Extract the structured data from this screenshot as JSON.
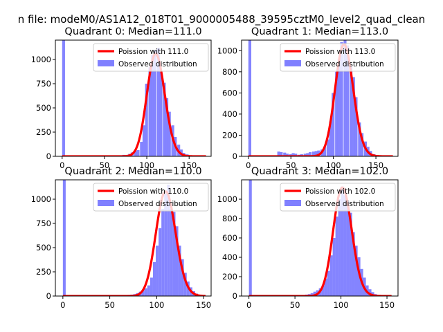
{
  "suptitle": "n file: modeM0/AS1A12_018T01_9000005488_39595cztM0_level2_quad_clean",
  "colors": {
    "poisson": "#ff0000",
    "observed": "#8080ff",
    "axes": "#000000"
  },
  "chart_data": [
    {
      "type": "bar",
      "title": "Quadrant 0: Median=111.0",
      "median": 111.0,
      "xlim": [
        -8,
        176
      ],
      "ylim": [
        0,
        1200
      ],
      "xticks": [
        0,
        50,
        100,
        150
      ],
      "yticks": [
        0,
        250,
        500,
        750,
        1000
      ],
      "legend": {
        "placement": "upper-right",
        "entries": [
          "Poission with 111.0",
          "Observed distribution"
        ]
      },
      "series": [
        {
          "name": "Poission with 111.0",
          "type": "line",
          "lambda": 111.0,
          "x_range": [
            0,
            170
          ],
          "peak": 1060
        },
        {
          "name": "Observed distribution",
          "type": "histogram",
          "bin_width": 3.4,
          "bins": [
            [
              0,
              1200
            ],
            [
              65,
              5
            ],
            [
              68,
              10
            ],
            [
              71,
              15
            ],
            [
              75,
              15
            ],
            [
              78,
              25
            ],
            [
              81,
              40
            ],
            [
              85,
              55
            ],
            [
              88,
              65
            ],
            [
              92,
              150
            ],
            [
              95,
              320
            ],
            [
              98,
              750
            ],
            [
              102,
              920
            ],
            [
              105,
              1050
            ],
            [
              108,
              1100
            ],
            [
              112,
              1120
            ],
            [
              115,
              870
            ],
            [
              119,
              760
            ],
            [
              122,
              600
            ],
            [
              125,
              460
            ],
            [
              129,
              320
            ],
            [
              132,
              200
            ],
            [
              136,
              120
            ],
            [
              139,
              70
            ],
            [
              142,
              35
            ],
            [
              146,
              20
            ],
            [
              149,
              10
            ],
            [
              153,
              5
            ]
          ]
        }
      ]
    },
    {
      "type": "bar",
      "title": "Quadrant 1: Median=113.0",
      "median": 113.0,
      "xlim": [
        -8,
        176
      ],
      "ylim": [
        0,
        1100
      ],
      "xticks": [
        0,
        50,
        100,
        150
      ],
      "yticks": [
        0,
        200,
        400,
        600,
        800,
        1000
      ],
      "legend": {
        "placement": "upper-right",
        "entries": [
          "Poission with 113.0",
          "Observed distribution"
        ]
      },
      "series": [
        {
          "name": "Poission with 113.0",
          "type": "line",
          "lambda": 113.0,
          "x_range": [
            0,
            170
          ],
          "peak": 1060
        },
        {
          "name": "Observed distribution",
          "type": "histogram",
          "bin_width": 3.4,
          "bins": [
            [
              0,
              1100
            ],
            [
              34,
              45
            ],
            [
              37,
              40
            ],
            [
              41,
              35
            ],
            [
              44,
              25
            ],
            [
              48,
              20
            ],
            [
              51,
              30
            ],
            [
              54,
              25
            ],
            [
              58,
              15
            ],
            [
              61,
              20
            ],
            [
              65,
              25
            ],
            [
              68,
              30
            ],
            [
              71,
              40
            ],
            [
              75,
              45
            ],
            [
              78,
              50
            ],
            [
              81,
              55
            ],
            [
              85,
              65
            ],
            [
              88,
              90
            ],
            [
              92,
              160
            ],
            [
              95,
              330
            ],
            [
              98,
              600
            ],
            [
              102,
              800
            ],
            [
              105,
              920
            ],
            [
              108,
              1080
            ],
            [
              112,
              1110
            ],
            [
              115,
              1050
            ],
            [
              119,
              850
            ],
            [
              122,
              750
            ],
            [
              125,
              560
            ],
            [
              129,
              320
            ],
            [
              132,
              220
            ],
            [
              136,
              140
            ],
            [
              139,
              90
            ],
            [
              142,
              50
            ],
            [
              146,
              20
            ],
            [
              149,
              10
            ]
          ]
        }
      ]
    },
    {
      "type": "bar",
      "title": "Quadrant 2: Median=110.0",
      "median": 110.0,
      "xlim": [
        -8,
        158
      ],
      "ylim": [
        0,
        1200
      ],
      "xticks": [
        0,
        50,
        100,
        150
      ],
      "yticks": [
        0,
        250,
        500,
        750,
        1000
      ],
      "legend": {
        "placement": "upper-right",
        "entries": [
          "Poission with 110.0",
          "Observed distribution"
        ]
      },
      "series": [
        {
          "name": "Poission with 110.0",
          "type": "line",
          "lambda": 110.0,
          "x_range": [
            0,
            152
          ],
          "peak": 1080
        },
        {
          "name": "Observed distribution",
          "type": "histogram",
          "bin_width": 3.0,
          "bins": [
            [
              0,
              1200
            ],
            [
              60,
              5
            ],
            [
              63,
              8
            ],
            [
              66,
              10
            ],
            [
              69,
              12
            ],
            [
              72,
              15
            ],
            [
              75,
              20
            ],
            [
              78,
              30
            ],
            [
              81,
              45
            ],
            [
              84,
              60
            ],
            [
              87,
              80
            ],
            [
              90,
              110
            ],
            [
              93,
              190
            ],
            [
              96,
              350
            ],
            [
              99,
              520
            ],
            [
              102,
              700
            ],
            [
              105,
              900
            ],
            [
              108,
              1060
            ],
            [
              111,
              1150
            ],
            [
              114,
              900
            ],
            [
              117,
              870
            ],
            [
              120,
              720
            ],
            [
              123,
              520
            ],
            [
              126,
              380
            ],
            [
              129,
              240
            ],
            [
              132,
              150
            ],
            [
              135,
              90
            ],
            [
              138,
              50
            ],
            [
              141,
              25
            ],
            [
              144,
              10
            ]
          ]
        }
      ]
    },
    {
      "type": "bar",
      "title": "Quadrant 3: Median=102.0",
      "median": 102.0,
      "xlim": [
        -8,
        162
      ],
      "ylim": [
        0,
        1200
      ],
      "xticks": [
        0,
        50,
        100,
        150
      ],
      "yticks": [
        0,
        200,
        400,
        600,
        800,
        1000
      ],
      "legend": {
        "placement": "upper-right",
        "entries": [
          "Poission with 102.0",
          "Observed distribution"
        ]
      },
      "series": [
        {
          "name": "Poission with 102.0",
          "type": "line",
          "lambda": 102.0,
          "x_range": [
            0,
            155
          ],
          "peak": 1120
        },
        {
          "name": "Observed distribution",
          "type": "histogram",
          "bin_width": 3.1,
          "bins": [
            [
              0,
              1200
            ],
            [
              55,
              5
            ],
            [
              58,
              10
            ],
            [
              61,
              15
            ],
            [
              64,
              20
            ],
            [
              67,
              30
            ],
            [
              70,
              45
            ],
            [
              73,
              60
            ],
            [
              76,
              80
            ],
            [
              79,
              110
            ],
            [
              82,
              180
            ],
            [
              85,
              260
            ],
            [
              88,
              420
            ],
            [
              91,
              600
            ],
            [
              94,
              820
            ],
            [
              97,
              1000
            ],
            [
              100,
              1130
            ],
            [
              103,
              1040
            ],
            [
              106,
              980
            ],
            [
              109,
              860
            ],
            [
              112,
              660
            ],
            [
              115,
              520
            ],
            [
              118,
              400
            ],
            [
              121,
              280
            ],
            [
              124,
              190
            ],
            [
              127,
              110
            ],
            [
              130,
              70
            ],
            [
              133,
              40
            ],
            [
              136,
              20
            ],
            [
              139,
              10
            ],
            [
              142,
              5
            ]
          ]
        }
      ]
    }
  ]
}
